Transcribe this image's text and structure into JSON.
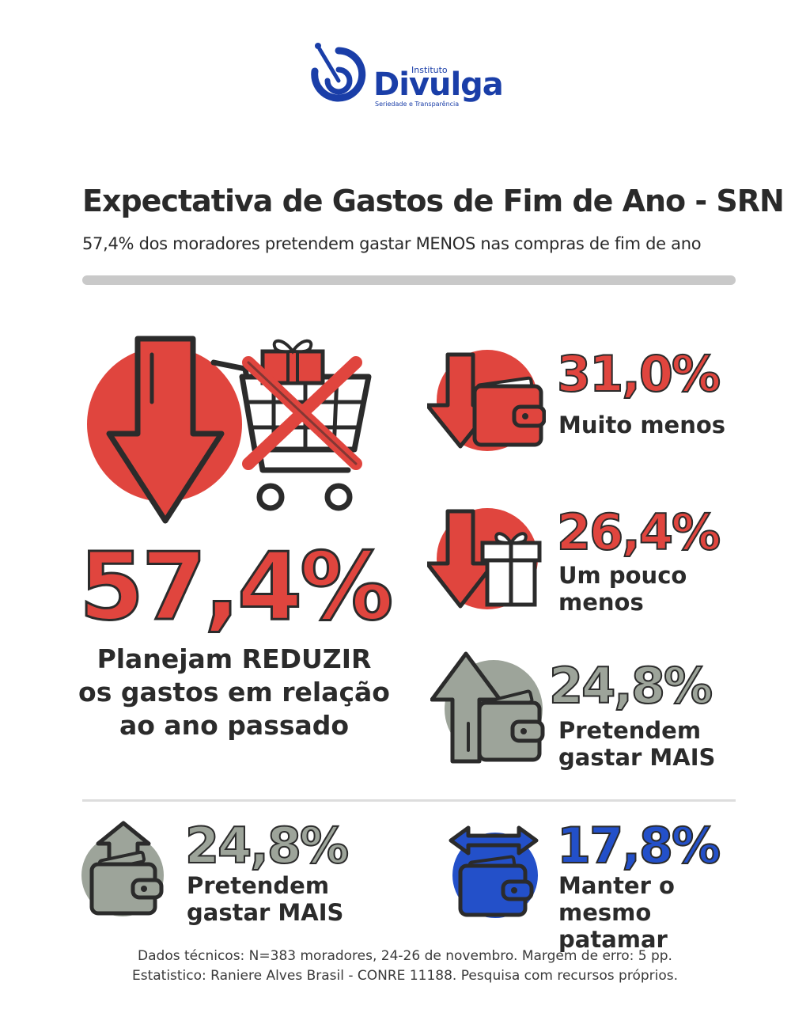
{
  "brand": {
    "instituto": "Instituto",
    "name": "Divulga",
    "tagline": "Seriedade e Transparência",
    "color": "#1a3ea8"
  },
  "header": {
    "title": "Expectativa de Gastos de Fim de Ano - SRN",
    "subtitle": "57,4% dos moradores pretendem gastar MENOS nas compras de fim de ano"
  },
  "main_stat": {
    "value": "57,4%",
    "description": "Planejam REDUZIR os gastos em relação ao ano passado",
    "icon": "arrow-down-cart-cross-icon"
  },
  "stats": [
    {
      "value": "31,0%",
      "label": "Muito menos",
      "icon": "arrow-down-wallet-icon",
      "color": "#e0453e"
    },
    {
      "value": "26,4%",
      "label": "Um pouco menos",
      "icon": "arrow-down-gift-icon",
      "color": "#e0453e"
    },
    {
      "value": "24,8%",
      "label": "Pretendem gastar MAIS",
      "icon": "arrow-up-wallet-icon",
      "color": "#9da49a"
    },
    {
      "value": "24,8%",
      "label": "Pretendem gastar MAIS",
      "icon": "arrow-up-wallet-icon",
      "color": "#9da49a"
    },
    {
      "value": "17,8%",
      "label": "Manter o mesmo patamar",
      "icon": "arrows-horizontal-wallet-icon",
      "color": "#2350c9"
    }
  ],
  "footer": {
    "line1": "Dados técnicos: N=383 moradores, 24-26 de novembro. Margem de erro: 5 pp.",
    "line2": "Estatistico: Raniere Alves Brasil - CONRE 11188. Pesquisa com recursos próprios."
  }
}
